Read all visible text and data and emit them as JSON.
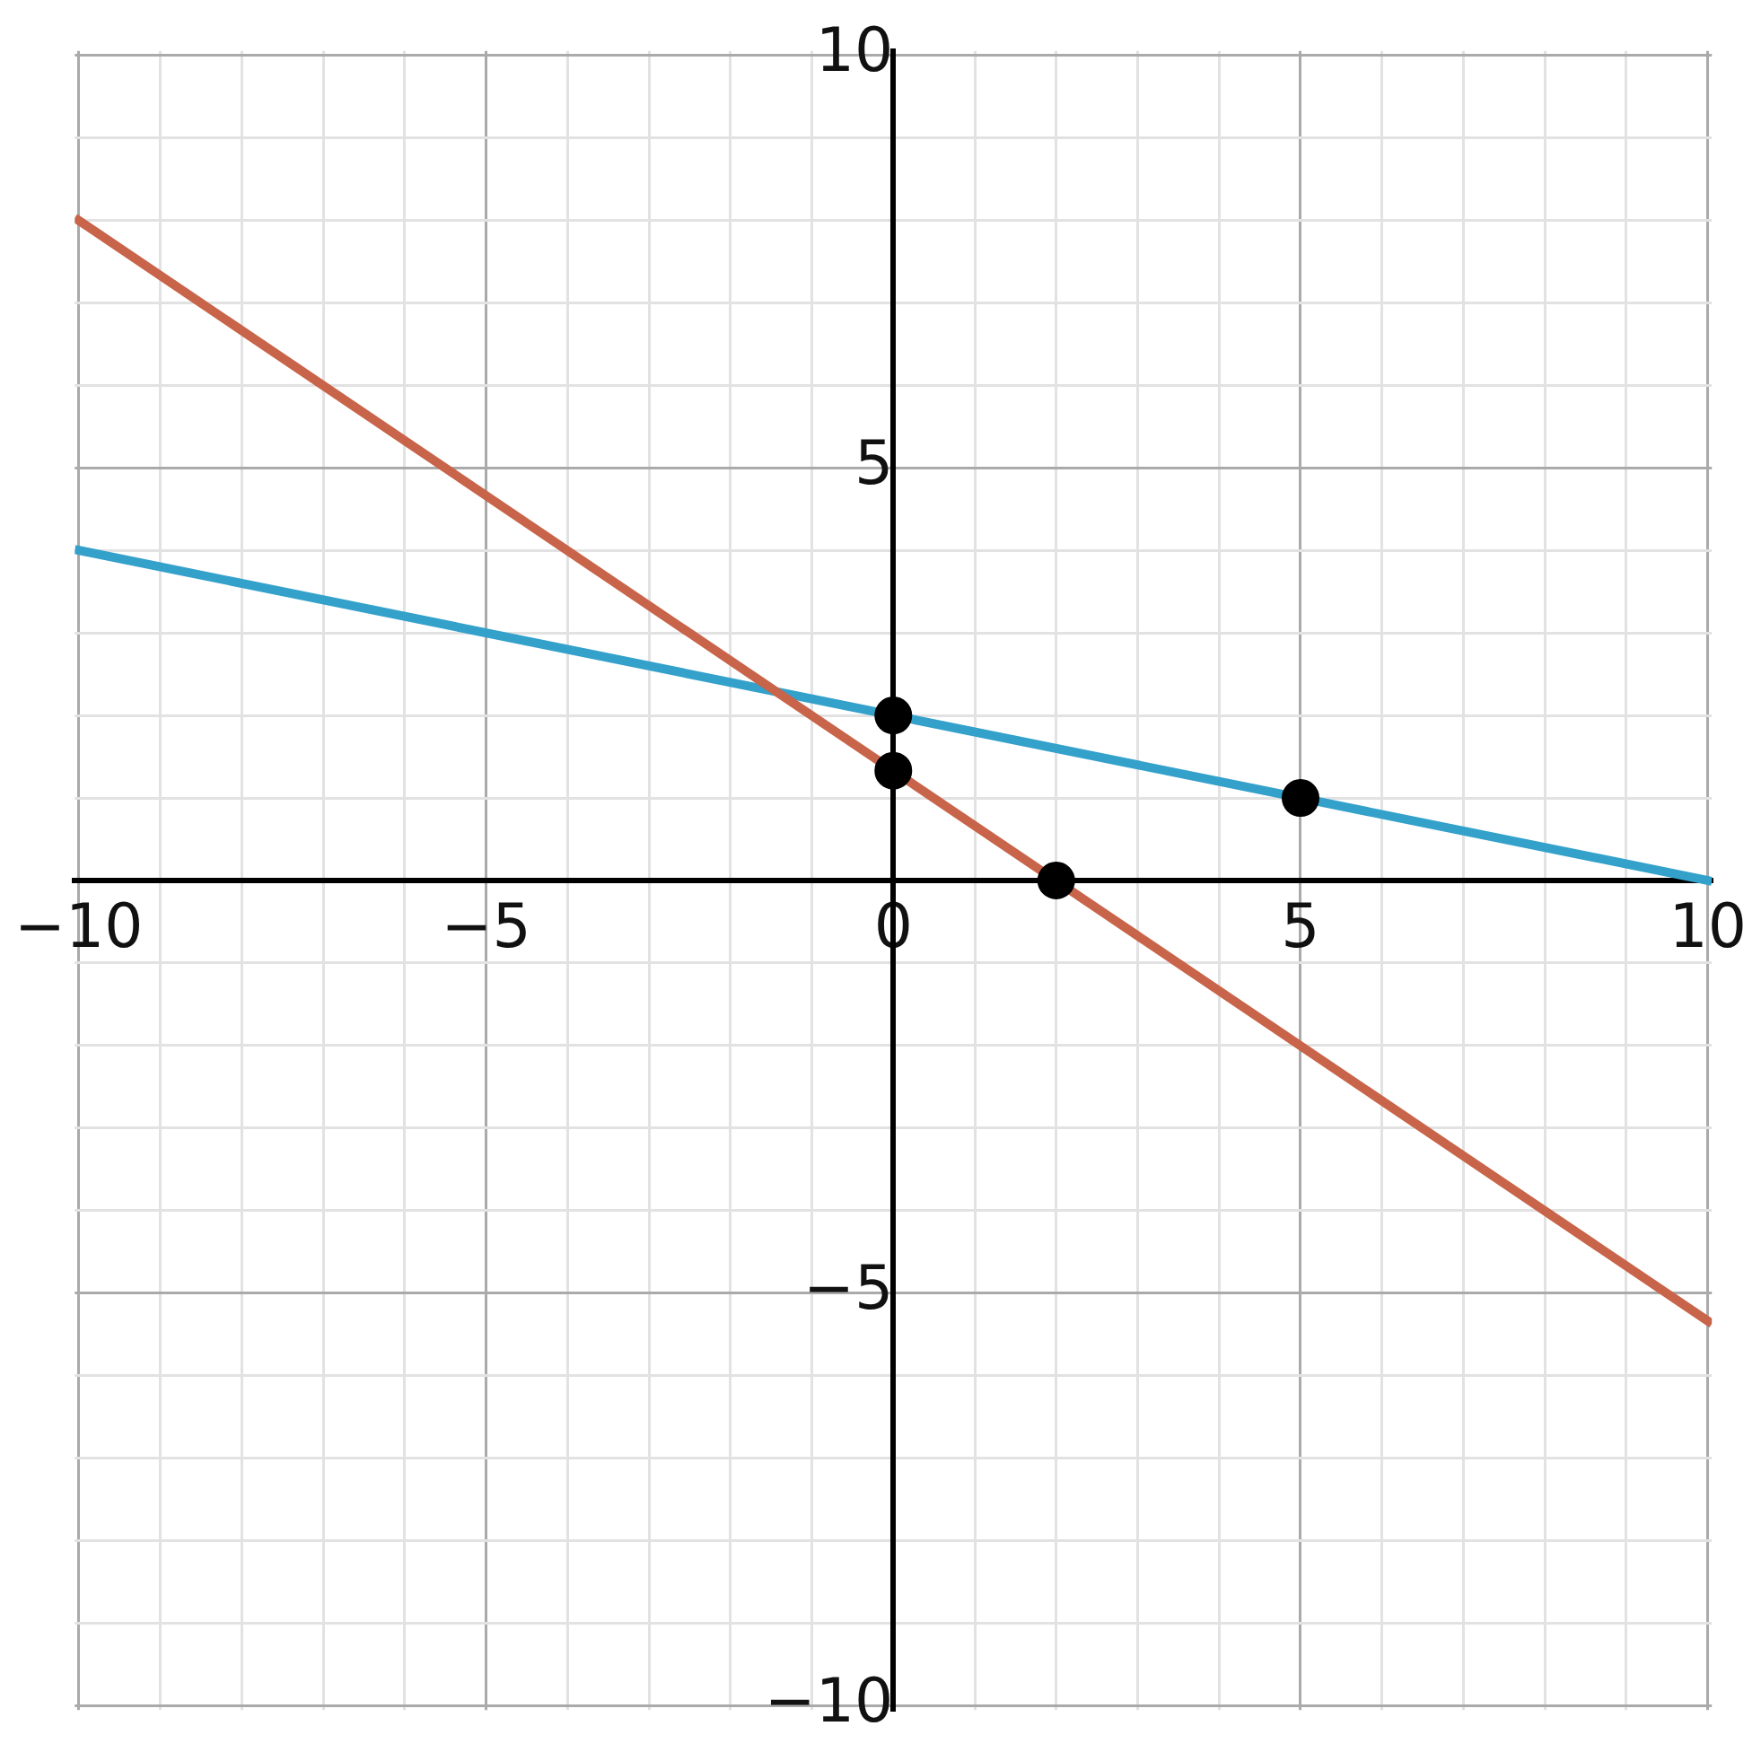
{
  "chart_data": {
    "type": "line",
    "xlim": [
      -10.05,
      10.05
    ],
    "ylim": [
      -10.05,
      10.05
    ],
    "xticks": [
      {
        "value": -10,
        "label": "−10"
      },
      {
        "value": -9,
        "label": null
      },
      {
        "value": -8,
        "label": null
      },
      {
        "value": -7,
        "label": null
      },
      {
        "value": -6,
        "label": null
      },
      {
        "value": -5,
        "label": "−5"
      },
      {
        "value": -4,
        "label": null
      },
      {
        "value": -3,
        "label": null
      },
      {
        "value": -2,
        "label": null
      },
      {
        "value": -1,
        "label": null
      },
      {
        "value": 0,
        "label": "0"
      },
      {
        "value": 1,
        "label": null
      },
      {
        "value": 2,
        "label": null
      },
      {
        "value": 3,
        "label": null
      },
      {
        "value": 4,
        "label": null
      },
      {
        "value": 5,
        "label": "5"
      },
      {
        "value": 6,
        "label": null
      },
      {
        "value": 7,
        "label": null
      },
      {
        "value": 8,
        "label": null
      },
      {
        "value": 9,
        "label": null
      },
      {
        "value": 10,
        "label": "10"
      }
    ],
    "yticks": [
      {
        "value": -10,
        "label": "−10"
      },
      {
        "value": -9,
        "label": null
      },
      {
        "value": -8,
        "label": null
      },
      {
        "value": -7,
        "label": null
      },
      {
        "value": -6,
        "label": null
      },
      {
        "value": -5,
        "label": "−5"
      },
      {
        "value": -4,
        "label": null
      },
      {
        "value": -3,
        "label": null
      },
      {
        "value": -2,
        "label": null
      },
      {
        "value": -1,
        "label": null
      },
      {
        "value": 0,
        "label": null
      },
      {
        "value": 1,
        "label": null
      },
      {
        "value": 2,
        "label": null
      },
      {
        "value": 3,
        "label": null
      },
      {
        "value": 4,
        "label": null
      },
      {
        "value": 5,
        "label": "5"
      },
      {
        "value": 6,
        "label": null
      },
      {
        "value": 7,
        "label": null
      },
      {
        "value": 8,
        "label": null
      },
      {
        "value": 9,
        "label": null
      },
      {
        "value": 10,
        "label": "10"
      }
    ],
    "grid": true,
    "legend": false,
    "line_style": "solid",
    "series": [
      {
        "color": "#c8644a",
        "marker": "none",
        "x": [
          -10.05,
          10.05
        ],
        "values": [
          8.03,
          -5.37
        ]
      },
      {
        "color": "#34a1cb",
        "marker": "none",
        "x": [
          -10.05,
          10.05
        ],
        "values": [
          4.01,
          -0.01
        ]
      },
      {
        "type": "scatter",
        "marker": "circle",
        "color": "#000000",
        "x": [
          0,
          0,
          2,
          5
        ],
        "values": [
          2,
          1.33,
          0,
          1
        ]
      }
    ]
  }
}
